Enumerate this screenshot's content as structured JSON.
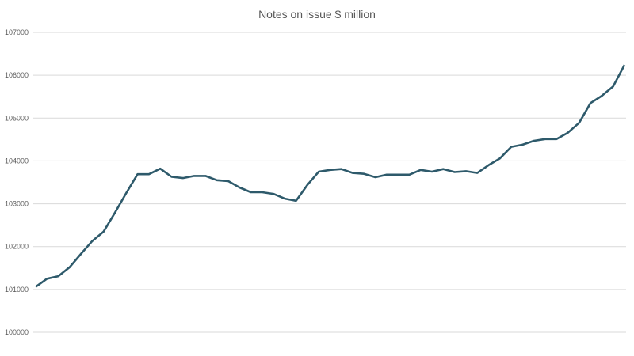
{
  "chart_data": {
    "type": "line",
    "title": "Notes on issue $ million",
    "xlabel": "",
    "ylabel": "",
    "ylim": [
      100000,
      107000
    ],
    "yticks": [
      "100000",
      "101000",
      "102000",
      "103000",
      "104000",
      "105000",
      "106000",
      "107000"
    ],
    "grid": true,
    "legend": "none",
    "line_color": "#2E5A6B",
    "series": [
      {
        "name": "Notes on issue $ million",
        "values": [
          101060,
          101250,
          101310,
          101520,
          101830,
          102130,
          102350,
          102790,
          103250,
          103690,
          103690,
          103820,
          103630,
          103600,
          103650,
          103650,
          103550,
          103530,
          103380,
          103270,
          103270,
          103230,
          103120,
          103070,
          103440,
          103750,
          103790,
          103810,
          103720,
          103700,
          103620,
          103680,
          103680,
          103680,
          103790,
          103750,
          103810,
          103740,
          103760,
          103720,
          103900,
          104060,
          104330,
          104380,
          104470,
          104510,
          104510,
          104660,
          104890,
          105350,
          105520,
          105740,
          106240
        ]
      }
    ]
  }
}
